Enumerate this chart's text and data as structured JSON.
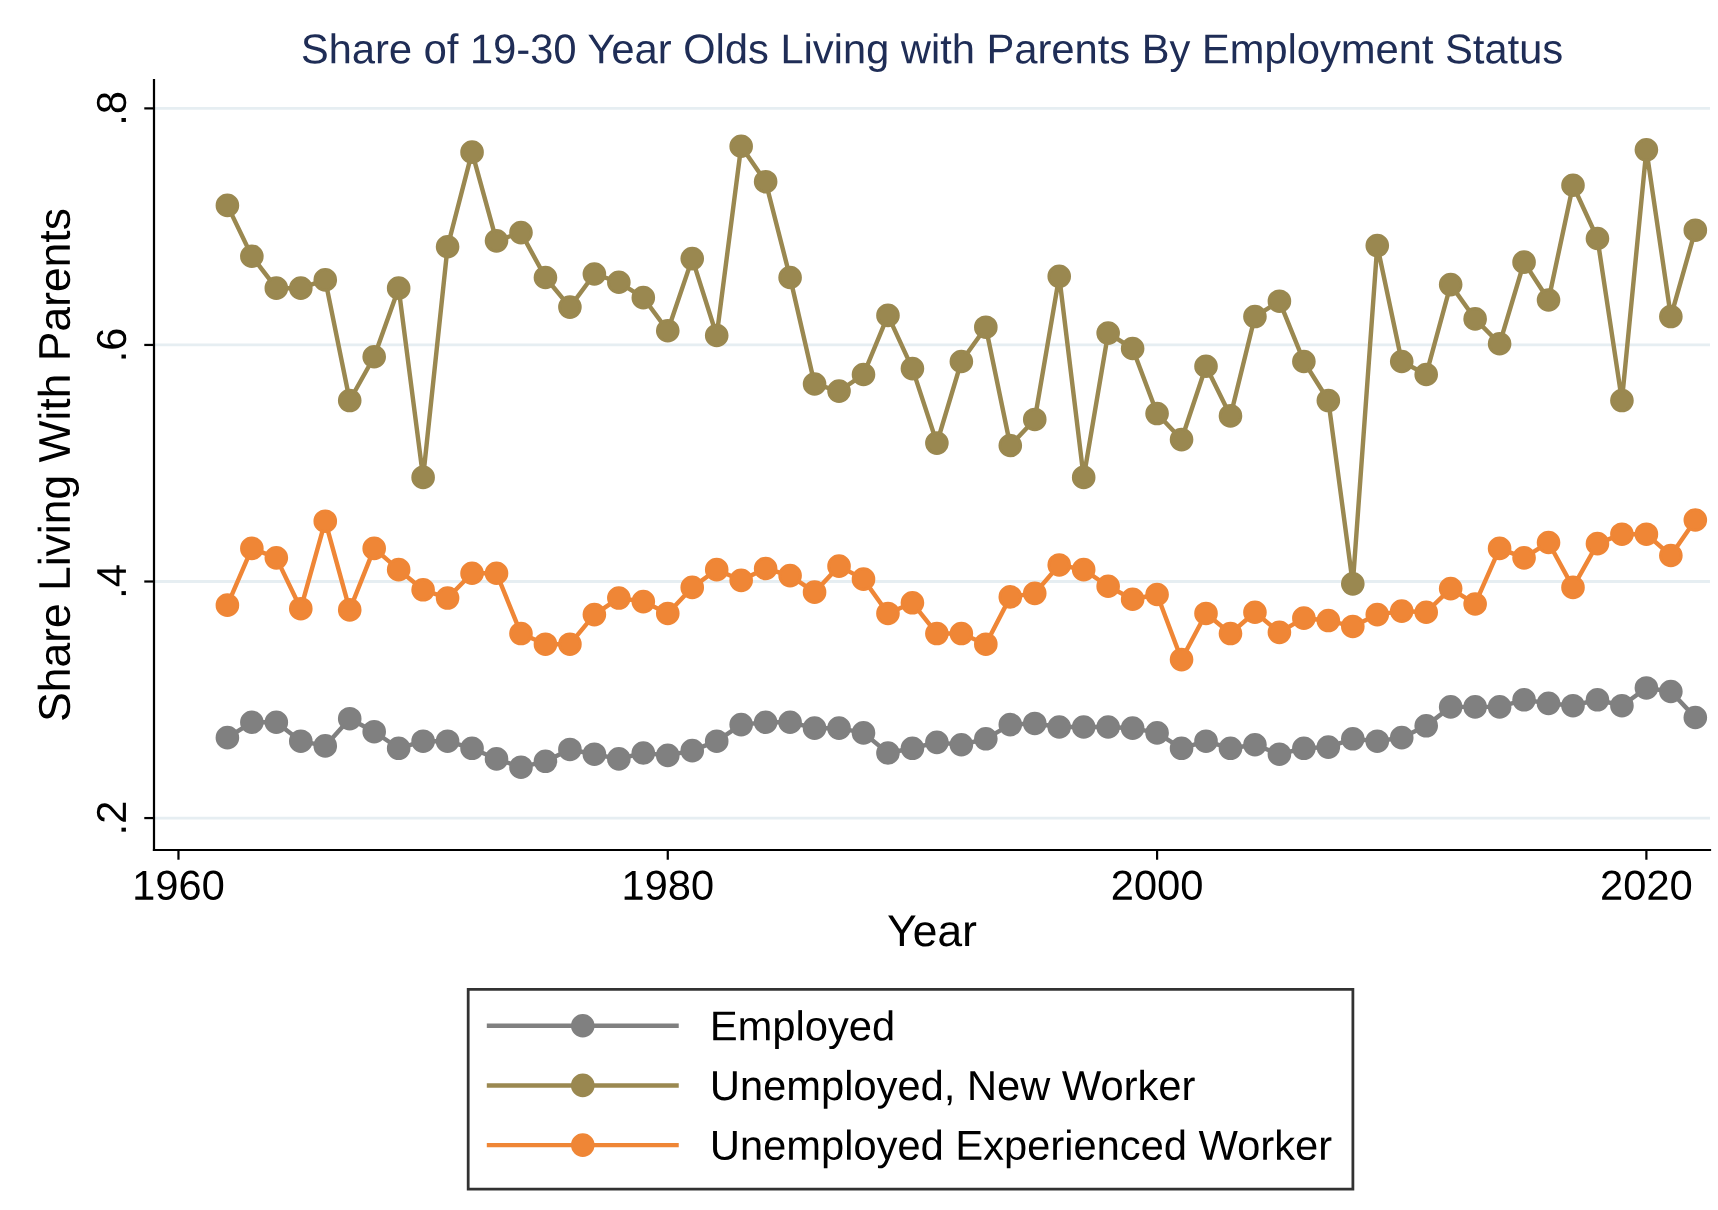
{
  "chart_data": {
    "type": "line",
    "title": "Share of 19-30 Year Olds Living with Parents By Employment Status",
    "xlabel": "Year",
    "ylabel": "Share Living With Parents",
    "x": [
      1962,
      1963,
      1964,
      1965,
      1966,
      1967,
      1968,
      1969,
      1970,
      1971,
      1972,
      1973,
      1974,
      1975,
      1976,
      1977,
      1978,
      1979,
      1980,
      1981,
      1982,
      1983,
      1984,
      1985,
      1986,
      1987,
      1988,
      1989,
      1990,
      1991,
      1992,
      1993,
      1994,
      1995,
      1996,
      1997,
      1998,
      1999,
      2000,
      2001,
      2002,
      2003,
      2004,
      2005,
      2006,
      2007,
      2008,
      2009,
      2010,
      2011,
      2012,
      2013,
      2014,
      2015,
      2016,
      2017,
      2018,
      2019,
      2020,
      2021,
      2022
    ],
    "series": [
      {
        "name": "Employed",
        "color": "#808080",
        "values": [
          0.268,
          0.281,
          0.281,
          0.265,
          0.261,
          0.284,
          0.273,
          0.259,
          0.265,
          0.265,
          0.259,
          0.25,
          0.243,
          0.248,
          0.258,
          0.254,
          0.25,
          0.255,
          0.253,
          0.257,
          0.265,
          0.279,
          0.281,
          0.281,
          0.276,
          0.276,
          0.272,
          0.255,
          0.259,
          0.264,
          0.262,
          0.267,
          0.279,
          0.28,
          0.277,
          0.277,
          0.277,
          0.276,
          0.272,
          0.259,
          0.265,
          0.259,
          0.262,
          0.254,
          0.259,
          0.26,
          0.267,
          0.265,
          0.268,
          0.278,
          0.294,
          0.294,
          0.294,
          0.3,
          0.297,
          0.295,
          0.3,
          0.295,
          0.31,
          0.307,
          0.285
        ]
      },
      {
        "name": "Unemployed, New Worker",
        "color": "#9a8850",
        "values": [
          0.718,
          0.675,
          0.648,
          0.648,
          0.655,
          0.553,
          0.59,
          0.648,
          0.488,
          0.683,
          0.763,
          0.688,
          0.695,
          0.657,
          0.632,
          0.66,
          0.653,
          0.64,
          0.612,
          0.673,
          0.608,
          0.768,
          0.738,
          0.657,
          0.567,
          0.561,
          0.575,
          0.625,
          0.58,
          0.517,
          0.586,
          0.615,
          0.515,
          0.537,
          0.658,
          0.488,
          0.61,
          0.597,
          0.542,
          0.52,
          0.582,
          0.54,
          0.624,
          0.637,
          0.586,
          0.553,
          0.398,
          0.684,
          0.586,
          0.575,
          0.651,
          0.622,
          0.601,
          0.67,
          0.638,
          0.735,
          0.69,
          0.553,
          0.765,
          0.624,
          0.697
        ]
      },
      {
        "name": "Unemployed Experienced Worker",
        "color": "#ef8636",
        "values": [
          0.38,
          0.428,
          0.42,
          0.377,
          0.451,
          0.376,
          0.428,
          0.41,
          0.393,
          0.386,
          0.407,
          0.407,
          0.356,
          0.347,
          0.347,
          0.372,
          0.386,
          0.383,
          0.373,
          0.395,
          0.41,
          0.401,
          0.411,
          0.405,
          0.391,
          0.413,
          0.402,
          0.373,
          0.382,
          0.356,
          0.356,
          0.347,
          0.387,
          0.39,
          0.414,
          0.41,
          0.396,
          0.385,
          0.389,
          0.334,
          0.373,
          0.356,
          0.374,
          0.357,
          0.369,
          0.367,
          0.362,
          0.372,
          0.375,
          0.374,
          0.394,
          0.381,
          0.428,
          0.42,
          0.433,
          0.395,
          0.432,
          0.44,
          0.44,
          0.422,
          0.452
        ]
      }
    ],
    "xlim": [
      1959,
      2022.6
    ],
    "xticks": [
      1960,
      1980,
      2000,
      2020
    ],
    "ylim": [
      0.173,
      0.824
    ],
    "yticks": [
      {
        "value": 0.2,
        "label": ".2"
      },
      {
        "value": 0.4,
        "label": ".4"
      },
      {
        "value": 0.6,
        "label": ".6"
      },
      {
        "value": 0.8,
        "label": ".8"
      }
    ],
    "grid": "y",
    "legend": "bottom",
    "marker": "circle",
    "line_style": "solid"
  }
}
